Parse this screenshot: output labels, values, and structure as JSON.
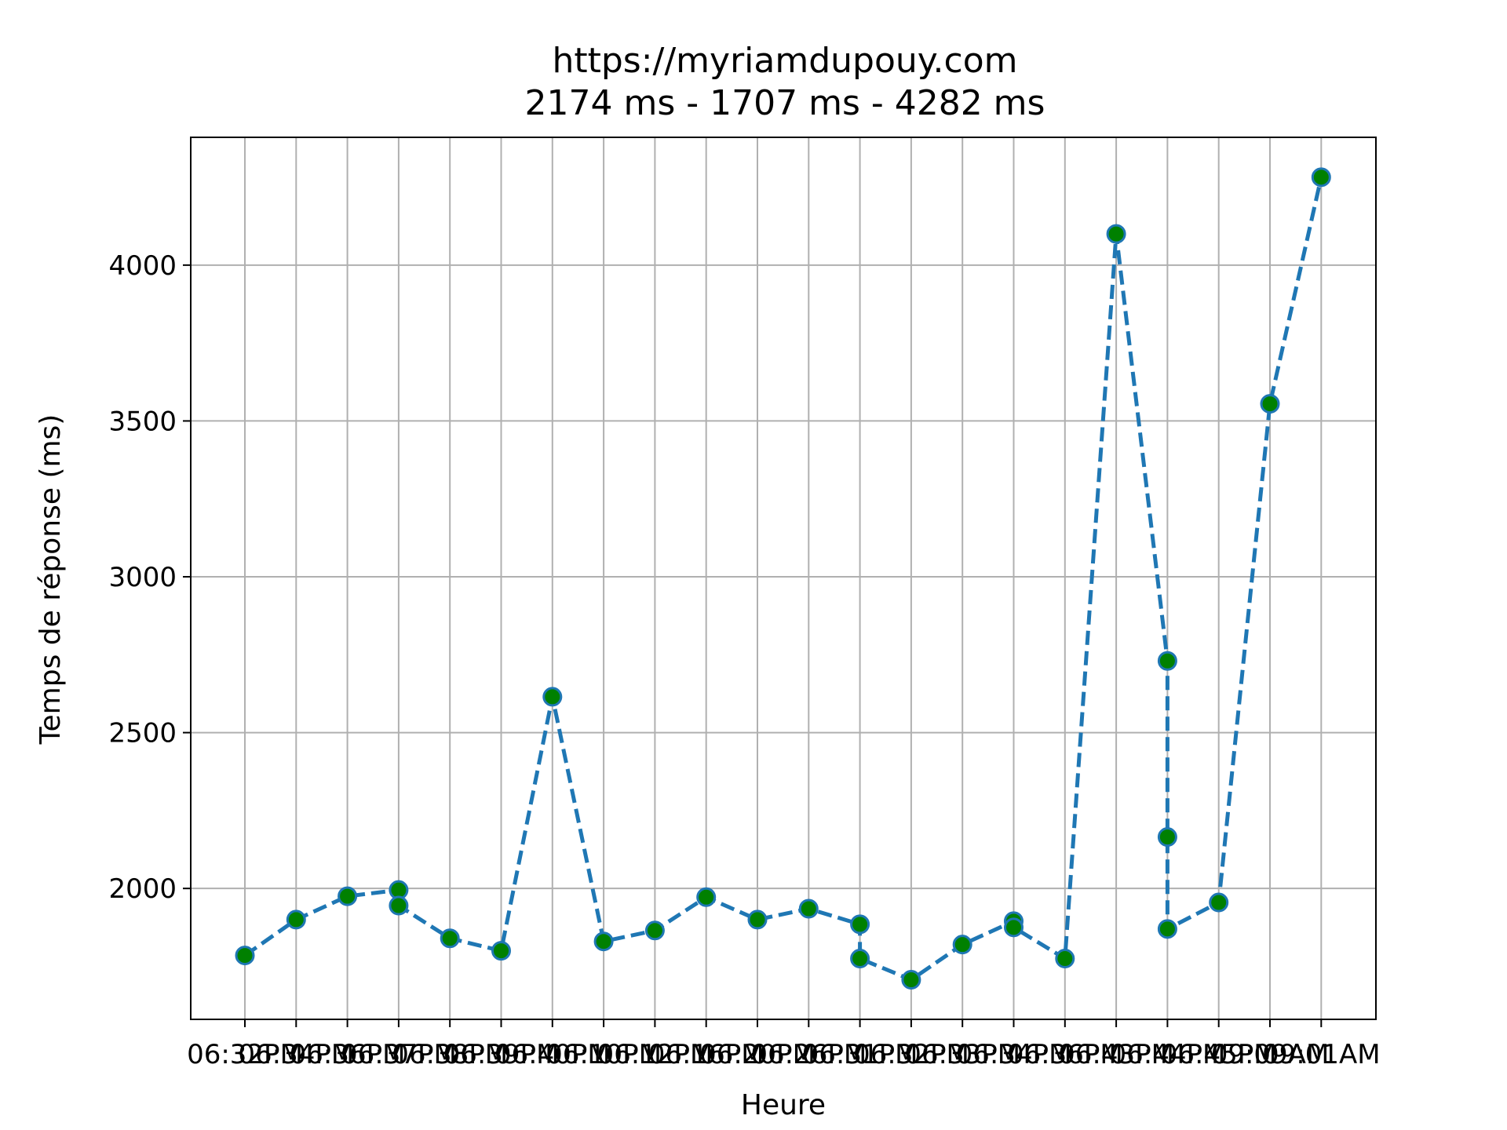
{
  "chart_data": {
    "type": "line",
    "title": "https://myriamdupouy.com",
    "subtitle": "2174 ms  - 1707 ms  - 4282 ms",
    "xlabel": "Heure",
    "ylabel": "Temps de réponse (ms)",
    "ylim": [
      1580,
      4410
    ],
    "yticks": [
      2000,
      2500,
      3000,
      3500,
      4000
    ],
    "grid": true,
    "x_categories": [
      "06:32PM",
      "06:34PM",
      "06:36PM",
      "06:37PM",
      "06:38PM",
      "06:39PM",
      "06:40PM",
      "06:10PM",
      "06:12PM",
      "06:16PM",
      "06:20PM",
      "06:26PM",
      "06:31PM",
      "06:32PM",
      "06:33PM",
      "06:34PM",
      "06:36PM",
      "06:43PM",
      "06:44PM",
      "06:45PM",
      "09:09AM",
      "09:01AM"
    ],
    "visible_tick_labels": {
      "first": "06:3",
      "last": "01AM"
    },
    "series": [
      {
        "line_color": "#1f77b4",
        "marker_face": "#008000",
        "marker_edge": "#1f77b4",
        "line_style": "dashed",
        "points": [
          {
            "x": 0,
            "y": 1785
          },
          {
            "x": 1,
            "y": 1900
          },
          {
            "x": 2,
            "y": 1975
          },
          {
            "x": 3,
            "y": 1995
          },
          {
            "x": 3,
            "y": 1945
          },
          {
            "x": 4,
            "y": 1840
          },
          {
            "x": 5,
            "y": 1800
          },
          {
            "x": 6,
            "y": 2615
          },
          {
            "x": 7,
            "y": 1830
          },
          {
            "x": 8,
            "y": 1865
          },
          {
            "x": 9,
            "y": 1972
          },
          {
            "x": 10,
            "y": 1900
          },
          {
            "x": 11,
            "y": 1935
          },
          {
            "x": 12,
            "y": 1885
          },
          {
            "x": 12,
            "y": 1775
          },
          {
            "x": 13,
            "y": 1707
          },
          {
            "x": 14,
            "y": 1820
          },
          {
            "x": 15,
            "y": 1895
          },
          {
            "x": 15,
            "y": 1875
          },
          {
            "x": 16,
            "y": 1775
          },
          {
            "x": 17,
            "y": 4100
          },
          {
            "x": 18,
            "y": 2730
          },
          {
            "x": 18,
            "y": 2165
          },
          {
            "x": 18,
            "y": 1870
          },
          {
            "x": 19,
            "y": 1955
          },
          {
            "x": 20,
            "y": 3555
          },
          {
            "x": 21,
            "y": 4282
          }
        ]
      }
    ]
  }
}
